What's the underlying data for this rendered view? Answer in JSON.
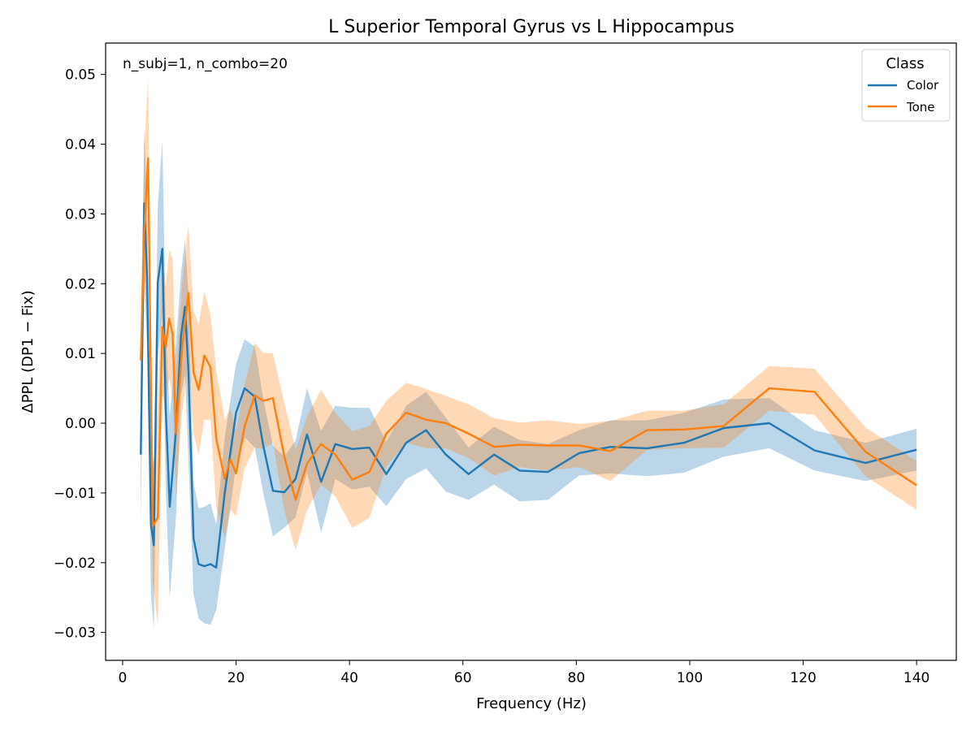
{
  "chart_data": {
    "type": "line",
    "title": "L Superior Temporal Gyrus vs L Hippocampus",
    "xlabel": "Frequency (Hz)",
    "ylabel": "ΔPPL (DP1 − Fix)",
    "annotation": "n_subj=1, n_combo=20",
    "xlim": [
      -3,
      147
    ],
    "ylim": [
      -0.034,
      0.0545
    ],
    "xticks": [
      0,
      20,
      40,
      60,
      80,
      100,
      120,
      140
    ],
    "xtick_labels": [
      "0",
      "20",
      "40",
      "60",
      "80",
      "100",
      "120",
      "140"
    ],
    "yticks": [
      -0.03,
      -0.02,
      -0.01,
      0.0,
      0.01,
      0.02,
      0.03,
      0.04,
      0.05
    ],
    "ytick_labels": [
      "−0.03",
      "−0.02",
      "−0.01",
      "0.00",
      "0.01",
      "0.02",
      "0.03",
      "0.04",
      "0.05"
    ],
    "grid": false,
    "legend": {
      "title": "Class",
      "placement": "top-right"
    },
    "series": [
      {
        "name": "Color",
        "color": "#1f77b4",
        "x": [
          3.2,
          3.8,
          4.3,
          5.0,
          5.5,
          6.2,
          7.0,
          7.6,
          8.3,
          9.4,
          10.3,
          11.0,
          11.6,
          12.5,
          13.4,
          14.4,
          15.5,
          16.5,
          18.0,
          20.0,
          21.5,
          23.3,
          24.8,
          26.5,
          28.5,
          30.5,
          32.5,
          35.0,
          37.5,
          40.5,
          43.5,
          46.5,
          50.0,
          53.5,
          57.0,
          61.0,
          65.5,
          70.0,
          75.0,
          80.5,
          86.0,
          92.5,
          99.0,
          106.0,
          114.0,
          122.0,
          131.0,
          140.0
        ],
        "y": [
          -0.0045,
          0.0315,
          0.021,
          -0.0145,
          -0.0175,
          0.0202,
          0.025,
          0.002,
          -0.012,
          -0.001,
          0.0125,
          0.0167,
          0.0075,
          -0.0165,
          -0.0202,
          -0.0205,
          -0.0202,
          -0.0207,
          -0.01,
          0.0015,
          0.005,
          0.0038,
          -0.0032,
          -0.0097,
          -0.0099,
          -0.008,
          -0.0016,
          -0.0084,
          -0.003,
          -0.0037,
          -0.0035,
          -0.0073,
          -0.0028,
          -0.001,
          -0.0045,
          -0.0073,
          -0.0045,
          -0.0068,
          -0.007,
          -0.0043,
          -0.0034,
          -0.0036,
          -0.0028,
          -0.0007,
          0.0,
          -0.0039,
          -0.0057,
          -0.0038
        ],
        "lower": [
          -0.0145,
          0.0215,
          0.011,
          -0.0245,
          -0.0295,
          0.0092,
          0.0155,
          -0.0095,
          -0.025,
          -0.0135,
          0.004,
          0.007,
          -0.005,
          -0.0245,
          -0.028,
          -0.0287,
          -0.0289,
          -0.0268,
          -0.018,
          -0.006,
          -0.002,
          -0.0035,
          -0.01,
          -0.0162,
          -0.015,
          -0.0135,
          -0.007,
          -0.0157,
          -0.008,
          -0.0095,
          -0.0091,
          -0.0119,
          -0.008,
          -0.0065,
          -0.0098,
          -0.011,
          -0.0088,
          -0.0112,
          -0.011,
          -0.0075,
          -0.0072,
          -0.0076,
          -0.0071,
          -0.0048,
          -0.0036,
          -0.0068,
          -0.0083,
          -0.0068
        ],
        "upper": [
          0.0055,
          0.042,
          0.031,
          -0.0045,
          -0.0055,
          0.0312,
          0.0405,
          0.0135,
          0.001,
          0.0115,
          0.0215,
          0.0264,
          0.0185,
          -0.0085,
          -0.0122,
          -0.012,
          -0.0115,
          -0.0145,
          -0.002,
          0.0085,
          0.012,
          0.011,
          0.0035,
          -0.0032,
          -0.0048,
          -0.0025,
          0.005,
          -0.0011,
          0.0025,
          0.0022,
          0.0022,
          -0.0027,
          0.0025,
          0.0045,
          0.0008,
          -0.0035,
          -0.0005,
          -0.0024,
          -0.003,
          -0.001,
          0.0004,
          0.0004,
          0.0015,
          0.0034,
          0.0036,
          -0.001,
          -0.0028,
          -0.0008
        ]
      },
      {
        "name": "Tone",
        "color": "#ff7f0e",
        "x": [
          3.2,
          3.8,
          4.5,
          5.3,
          6.2,
          7.0,
          7.6,
          8.2,
          8.8,
          9.4,
          10.5,
          11.6,
          12.5,
          13.4,
          14.4,
          15.5,
          16.5,
          18.0,
          19.0,
          20.0,
          21.5,
          23.3,
          24.8,
          26.5,
          28.5,
          30.5,
          32.5,
          35.0,
          37.5,
          40.5,
          43.5,
          46.5,
          50.0,
          53.5,
          57.0,
          61.0,
          65.5,
          70.0,
          75.0,
          80.5,
          86.0,
          92.5,
          99.0,
          106.0,
          114.0,
          122.0,
          131.0,
          140.0
        ],
        "y": [
          0.009,
          0.0275,
          0.038,
          -0.0148,
          -0.0135,
          0.0138,
          0.0109,
          0.015,
          0.0128,
          -0.0015,
          0.0108,
          0.0187,
          0.0073,
          0.0048,
          0.0097,
          0.008,
          -0.0022,
          -0.008,
          -0.0052,
          -0.0072,
          -0.0005,
          0.004,
          0.0032,
          0.0036,
          -0.0048,
          -0.011,
          -0.0058,
          -0.003,
          -0.0045,
          -0.0081,
          -0.007,
          -0.0015,
          0.0015,
          0.0005,
          0.0,
          -0.0015,
          -0.0034,
          -0.0031,
          -0.0032,
          -0.0032,
          -0.004,
          -0.001,
          -0.0009,
          -0.0004,
          0.005,
          0.0045,
          -0.0041,
          -0.0089
        ],
        "lower": [
          0.003,
          0.0155,
          0.0275,
          -0.0225,
          -0.029,
          0.004,
          0.0022,
          0.0065,
          0.004,
          -0.0105,
          0.0015,
          0.009,
          -0.0015,
          -0.0045,
          0.0005,
          0.0005,
          -0.012,
          -0.0165,
          -0.0125,
          -0.0133,
          -0.0065,
          -0.0035,
          -0.0037,
          -0.0028,
          -0.0125,
          -0.0182,
          -0.0125,
          -0.0088,
          -0.0105,
          -0.015,
          -0.0136,
          -0.0062,
          -0.0028,
          -0.0036,
          -0.0036,
          -0.005,
          -0.0075,
          -0.0063,
          -0.0068,
          -0.0063,
          -0.0083,
          -0.0038,
          -0.0036,
          -0.0035,
          0.0018,
          0.0012,
          -0.0076,
          -0.0124
        ],
        "upper": [
          0.015,
          0.0395,
          0.0495,
          -0.0071,
          0.002,
          0.0236,
          0.0196,
          0.0248,
          0.0236,
          0.0075,
          0.0201,
          0.0284,
          0.0161,
          0.0141,
          0.0189,
          0.0155,
          0.0076,
          0.0005,
          0.0021,
          -0.0011,
          0.0055,
          0.0115,
          0.0101,
          0.01,
          0.0029,
          -0.0038,
          0.0009,
          0.0048,
          0.0015,
          -0.0012,
          -0.0004,
          0.0032,
          0.0058,
          0.0049,
          0.0039,
          0.0027,
          0.0007,
          0.0001,
          0.0004,
          -0.0001,
          0.0003,
          0.0018,
          0.0018,
          0.0027,
          0.0082,
          0.0078,
          -0.0006,
          -0.0054
        ]
      }
    ]
  }
}
